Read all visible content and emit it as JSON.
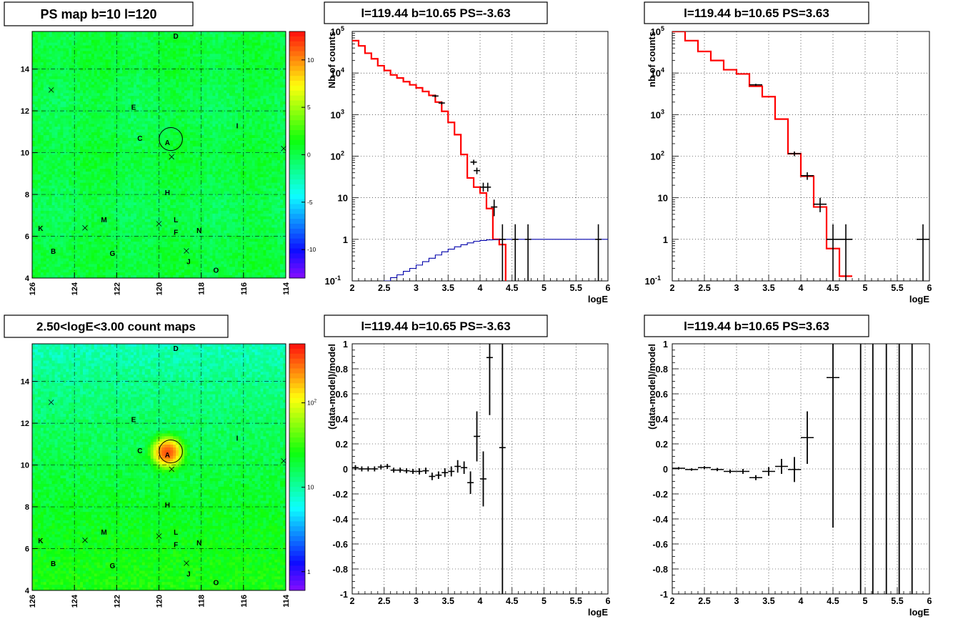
{
  "panels": [
    {
      "kind": "map",
      "title": "PS map b=10 l=120",
      "color_scale": "signed",
      "z_range": [
        -13,
        13
      ],
      "z_ticks": [
        {
          "v": 10,
          "t": "10"
        },
        {
          "v": 5,
          "t": "5"
        },
        {
          "v": 0,
          "t": "0"
        },
        {
          "v": -5,
          "t": "-5"
        },
        {
          "v": -10,
          "t": "-10"
        }
      ],
      "background_level": 0.4
    },
    {
      "kind": "hist",
      "title": "l=119.44 b=10.65 PS=-3.63",
      "ylabel": "Nb of counts"
    },
    {
      "kind": "hist",
      "title": "l=119.44 b=10.65 PS=3.63",
      "ylabel": "nb of counts"
    },
    {
      "kind": "map",
      "title": "2.50<logE<3.00 count maps",
      "color_scale": "log",
      "z_range": [
        0.6,
        500
      ],
      "z_ticks": [
        {
          "v": 100,
          "t": "10",
          "sup": "2"
        },
        {
          "v": 10,
          "t": "10",
          "sup": ""
        },
        {
          "v": 1,
          "t": "1",
          "sup": ""
        }
      ],
      "background_level": 22
    },
    {
      "kind": "resid",
      "title": "l=119.44 b=10.65 PS=-3.63",
      "ylabel": "(data-model)/model"
    },
    {
      "kind": "resid",
      "title": "l=119.44 b=10.65 PS=3.63",
      "ylabel": "(data-model)/model"
    }
  ],
  "map_axes": {
    "x_ticks": [
      "126",
      "124",
      "122",
      "120",
      "118",
      "116",
      "114"
    ],
    "y_ticks": [
      "4",
      "6",
      "8",
      "10",
      "12",
      "14"
    ],
    "xlim": [
      126,
      114
    ],
    "ylim": [
      4,
      15.8
    ],
    "sources": [
      {
        "label": "A",
        "l": 119.6,
        "b": 10.5
      },
      {
        "label": "C",
        "l": 120.9,
        "b": 10.7
      },
      {
        "label": "D",
        "l": 119.2,
        "b": 15.6
      },
      {
        "label": "E",
        "l": 121.2,
        "b": 12.2
      },
      {
        "label": "I",
        "l": 116.3,
        "b": 11.3
      },
      {
        "label": "H",
        "l": 119.6,
        "b": 8.1
      },
      {
        "label": "K",
        "l": 125.6,
        "b": 6.4
      },
      {
        "label": "M",
        "l": 122.6,
        "b": 6.8
      },
      {
        "label": "L",
        "l": 119.2,
        "b": 6.8
      },
      {
        "label": "F",
        "l": 119.2,
        "b": 6.2
      },
      {
        "label": "N",
        "l": 118.1,
        "b": 6.3
      },
      {
        "label": "B",
        "l": 125.0,
        "b": 5.3
      },
      {
        "label": "G",
        "l": 122.2,
        "b": 5.2
      },
      {
        "label": "J",
        "l": 118.6,
        "b": 4.8
      },
      {
        "label": "O",
        "l": 117.3,
        "b": 4.4
      }
    ],
    "crosses": [
      {
        "l": 125.1,
        "b": 13.0
      },
      {
        "l": 119.4,
        "b": 9.8
      },
      {
        "l": 114.1,
        "b": 10.2
      },
      {
        "l": 123.5,
        "b": 6.4
      },
      {
        "l": 120.0,
        "b": 6.6
      },
      {
        "l": 118.7,
        "b": 5.3
      }
    ],
    "circle": {
      "l": 119.44,
      "b": 10.65,
      "r": 0.55
    }
  },
  "hist_axes": {
    "xlabel": "logE",
    "xlim": [
      2,
      6
    ],
    "x_ticks": [
      "2",
      "2.5",
      "3",
      "3.5",
      "4",
      "4.5",
      "5",
      "5.5",
      "6"
    ],
    "ylim": [
      0.1,
      100000
    ],
    "y_ticks": [
      {
        "v": 100000,
        "base": "10",
        "sup": "5"
      },
      {
        "v": 10000,
        "base": "10",
        "sup": "4"
      },
      {
        "v": 1000,
        "base": "10",
        "sup": "3"
      },
      {
        "v": 100,
        "base": "10",
        "sup": "2"
      },
      {
        "v": 10,
        "base": "10",
        "sup": ""
      },
      {
        "v": 1,
        "base": "1",
        "sup": ""
      },
      {
        "v": 0.1,
        "base": "10",
        "sup": "-1"
      }
    ]
  },
  "resid_axes": {
    "xlabel": "logE",
    "xlim": [
      2,
      6
    ],
    "x_ticks": [
      "2",
      "2.5",
      "3",
      "3.5",
      "4",
      "4.5",
      "5",
      "5.5",
      "6"
    ],
    "ylim": [
      -1,
      1
    ],
    "y_ticks": [
      "1",
      "0.8",
      "0.6",
      "0.4",
      "0.2",
      "0",
      "-0.2",
      "-0.4",
      "-0.6",
      "-0.8",
      "-1"
    ]
  },
  "colors": {
    "model": "#ff0000",
    "source_model": "#0000aa",
    "data": "#000000",
    "grid": "#000000"
  },
  "chart_data": [
    {
      "type": "heatmap",
      "title": "PS map b=10 l=120",
      "xlim": [
        126,
        114
      ],
      "ylim": [
        4,
        15.8
      ],
      "zlim": [
        -13,
        13
      ],
      "note_values": "mostly near 0 to 1 across the map"
    },
    {
      "type": "line",
      "title": "l=119.44 b=10.65 PS=-3.63",
      "xlabel": "logE",
      "ylabel": "Nb of counts",
      "yscale": "log",
      "xlim": [
        2,
        6
      ],
      "ylim": [
        0.1,
        100000
      ],
      "series": [
        {
          "style": "step-red",
          "edges": [
            2.0,
            2.1,
            2.2,
            2.3,
            2.4,
            2.5,
            2.6,
            2.7,
            2.8,
            2.9,
            3.0,
            3.1,
            3.2,
            3.3,
            3.4,
            3.5,
            3.6,
            3.7,
            3.8,
            3.9,
            4.0,
            4.1,
            4.2,
            4.3,
            4.4,
            4.5,
            4.6
          ],
          "values": [
            60000,
            45000,
            30000,
            22000,
            15000,
            11500,
            9000,
            7600,
            6200,
            5200,
            4400,
            3600,
            2900,
            2000,
            1200,
            650,
            330,
            110,
            30,
            18,
            13,
            5.5,
            1,
            0.75,
            0.08,
            0.08
          ]
        },
        {
          "style": "step-blue",
          "edges": [
            2.0,
            2.1,
            2.2,
            2.3,
            2.4,
            2.5,
            2.6,
            2.7,
            2.8,
            2.9,
            3.0,
            3.1,
            3.2,
            3.3,
            3.4,
            3.5,
            3.6,
            3.7,
            3.8,
            3.9,
            4.0,
            4.1,
            4.2,
            4.3,
            4.4,
            4.5,
            4.6,
            4.7,
            4.8,
            4.9,
            5.0,
            5.1,
            5.2,
            5.3,
            5.4,
            5.5,
            5.6,
            5.7,
            5.8,
            5.9,
            6.0
          ],
          "values": [
            0.08,
            0.08,
            0.08,
            0.08,
            0.08,
            0.1,
            0.12,
            0.14,
            0.17,
            0.2,
            0.24,
            0.29,
            0.35,
            0.42,
            0.5,
            0.58,
            0.66,
            0.74,
            0.82,
            0.9,
            0.94,
            0.97,
            0.98,
            0.99,
            1,
            1,
            1,
            1,
            1,
            1,
            1,
            1,
            1,
            1,
            1,
            1,
            1,
            1,
            1,
            1
          ]
        },
        {
          "style": "errorbars",
          "points": [
            {
              "x": 3.3,
              "xe": 0.05,
              "y": 2800,
              "ylo": 2600,
              "yhi": 3000
            },
            {
              "x": 3.4,
              "xe": 0.05,
              "y": 1900,
              "ylo": 1750,
              "yhi": 2050
            },
            {
              "x": 3.9,
              "xe": 0.05,
              "y": 72,
              "ylo": 62,
              "yhi": 82
            },
            {
              "x": 3.95,
              "xe": 0.05,
              "y": 45,
              "ylo": 37,
              "yhi": 53
            },
            {
              "x": 4.05,
              "xe": 0.05,
              "y": 18,
              "ylo": 14,
              "yhi": 23
            },
            {
              "x": 4.12,
              "xe": 0.05,
              "y": 18,
              "ylo": 14,
              "yhi": 23
            },
            {
              "x": 4.22,
              "xe": 0.05,
              "y": 6,
              "ylo": 3.6,
              "yhi": 9
            },
            {
              "x": 4.35,
              "xe": 0.05,
              "y": 1,
              "ylo": 0.08,
              "yhi": 2.3
            },
            {
              "x": 4.55,
              "xe": 0.05,
              "y": 1,
              "ylo": 0.08,
              "yhi": 2.3
            },
            {
              "x": 4.75,
              "xe": 0.05,
              "y": 1,
              "ylo": 0.08,
              "yhi": 2.3
            },
            {
              "x": 5.85,
              "xe": 0.05,
              "y": 1,
              "ylo": 0.08,
              "yhi": 2.3
            }
          ]
        }
      ]
    },
    {
      "type": "line",
      "title": "l=119.44 b=10.65 PS=3.63",
      "xlabel": "logE",
      "ylabel": "nb of counts",
      "yscale": "log",
      "xlim": [
        2,
        6
      ],
      "ylim": [
        0.1,
        100000
      ],
      "series": [
        {
          "style": "step-red",
          "edges": [
            2.0,
            2.2,
            2.4,
            2.6,
            2.8,
            3.0,
            3.2,
            3.4,
            3.6,
            3.8,
            4.0,
            4.2,
            4.4,
            4.6,
            4.8
          ],
          "values": [
            100000,
            60000,
            33000,
            20000,
            12000,
            9500,
            4800,
            2700,
            780,
            115,
            33,
            6,
            0.6,
            0.13
          ]
        },
        {
          "style": "errorbars",
          "points": [
            {
              "x": 3.3,
              "xe": 0.1,
              "y": 5200,
              "ylo": 4900,
              "yhi": 5500
            },
            {
              "x": 3.9,
              "xe": 0.1,
              "y": 115,
              "ylo": 100,
              "yhi": 130
            },
            {
              "x": 4.1,
              "xe": 0.1,
              "y": 34,
              "ylo": 27,
              "yhi": 41
            },
            {
              "x": 4.3,
              "xe": 0.1,
              "y": 7,
              "ylo": 4.5,
              "yhi": 10
            },
            {
              "x": 4.5,
              "xe": 0.1,
              "y": 1,
              "ylo": 0.08,
              "yhi": 2.3
            },
            {
              "x": 4.7,
              "xe": 0.1,
              "y": 1,
              "ylo": 0.08,
              "yhi": 2.3
            },
            {
              "x": 5.9,
              "xe": 0.1,
              "y": 1,
              "ylo": 0.08,
              "yhi": 2.3
            }
          ]
        }
      ]
    },
    {
      "type": "heatmap",
      "title": "2.50<logE<3.00 count maps",
      "xlim": [
        126,
        114
      ],
      "ylim": [
        4,
        15.8
      ],
      "zlim": [
        0.6,
        500
      ],
      "zscale": "log",
      "note_values": "background ~15-40 counts, peak >300 at l=119.6 b=10.6"
    },
    {
      "type": "scatter",
      "title": "l=119.44 b=10.65 PS=-3.63",
      "xlabel": "logE",
      "ylabel": "(data-model)/model",
      "xlim": [
        2,
        6
      ],
      "ylim": [
        -1,
        1
      ],
      "points": [
        {
          "x": 2.05,
          "xe": 0.05,
          "y": 0.01,
          "e": 0.02
        },
        {
          "x": 2.15,
          "xe": 0.05,
          "y": 0.0,
          "e": 0.02
        },
        {
          "x": 2.25,
          "xe": 0.05,
          "y": 0.0,
          "e": 0.02
        },
        {
          "x": 2.35,
          "xe": 0.05,
          "y": 0.0,
          "e": 0.02
        },
        {
          "x": 2.45,
          "xe": 0.05,
          "y": 0.015,
          "e": 0.02
        },
        {
          "x": 2.55,
          "xe": 0.05,
          "y": 0.02,
          "e": 0.02
        },
        {
          "x": 2.65,
          "xe": 0.05,
          "y": -0.01,
          "e": 0.02
        },
        {
          "x": 2.75,
          "xe": 0.05,
          "y": -0.01,
          "e": 0.02
        },
        {
          "x": 2.85,
          "xe": 0.05,
          "y": -0.015,
          "e": 0.02
        },
        {
          "x": 2.95,
          "xe": 0.05,
          "y": -0.02,
          "e": 0.02
        },
        {
          "x": 3.05,
          "xe": 0.05,
          "y": -0.02,
          "e": 0.025
        },
        {
          "x": 3.15,
          "xe": 0.05,
          "y": -0.015,
          "e": 0.025
        },
        {
          "x": 3.25,
          "xe": 0.05,
          "y": -0.06,
          "e": 0.03
        },
        {
          "x": 3.35,
          "xe": 0.05,
          "y": -0.05,
          "e": 0.03
        },
        {
          "x": 3.45,
          "xe": 0.05,
          "y": -0.03,
          "e": 0.035
        },
        {
          "x": 3.55,
          "xe": 0.05,
          "y": -0.02,
          "e": 0.04
        },
        {
          "x": 3.65,
          "xe": 0.05,
          "y": 0.02,
          "e": 0.05
        },
        {
          "x": 3.75,
          "xe": 0.05,
          "y": 0.01,
          "e": 0.05
        },
        {
          "x": 3.85,
          "xe": 0.05,
          "y": -0.11,
          "e": 0.09
        },
        {
          "x": 3.95,
          "xe": 0.05,
          "y": 0.26,
          "e": 0.2
        },
        {
          "x": 4.05,
          "xe": 0.05,
          "y": -0.08,
          "e": 0.22
        },
        {
          "x": 4.15,
          "xe": 0.05,
          "y": 0.89,
          "e": 0.46
        },
        {
          "x": 4.35,
          "xe": 0.05,
          "y": 0.17,
          "e": 1.2
        }
      ]
    },
    {
      "type": "scatter",
      "title": "l=119.44 b=10.65 PS=3.63",
      "xlabel": "logE",
      "ylabel": "(data-model)/model",
      "xlim": [
        2,
        6
      ],
      "ylim": [
        -1,
        1
      ],
      "points": [
        {
          "x": 2.1,
          "xe": 0.1,
          "y": 0.005,
          "e": 0.01
        },
        {
          "x": 2.3,
          "xe": 0.1,
          "y": -0.005,
          "e": 0.01
        },
        {
          "x": 2.5,
          "xe": 0.1,
          "y": 0.01,
          "e": 0.012
        },
        {
          "x": 2.7,
          "xe": 0.1,
          "y": -0.005,
          "e": 0.013
        },
        {
          "x": 2.9,
          "xe": 0.1,
          "y": -0.02,
          "e": 0.015
        },
        {
          "x": 3.1,
          "xe": 0.1,
          "y": -0.02,
          "e": 0.02
        },
        {
          "x": 3.3,
          "xe": 0.1,
          "y": -0.07,
          "e": 0.02
        },
        {
          "x": 3.5,
          "xe": 0.1,
          "y": -0.02,
          "e": 0.035
        },
        {
          "x": 3.7,
          "xe": 0.1,
          "y": 0.02,
          "e": 0.06
        },
        {
          "x": 3.9,
          "xe": 0.1,
          "y": -0.005,
          "e": 0.1
        },
        {
          "x": 4.1,
          "xe": 0.1,
          "y": 0.25,
          "e": 0.21
        },
        {
          "x": 4.5,
          "xe": 0.1,
          "y": 0.73,
          "e": 1.2
        },
        {
          "x": 4.93,
          "xe": 0,
          "y": 0.1,
          "e": 1.2
        },
        {
          "x": 5.12,
          "xe": 0,
          "y": 0.1,
          "e": 1.2
        },
        {
          "x": 5.33,
          "xe": 0,
          "y": 0.1,
          "e": 1.2
        },
        {
          "x": 5.53,
          "xe": 0,
          "y": 0.1,
          "e": 1.2
        },
        {
          "x": 5.73,
          "xe": 0,
          "y": 0.1,
          "e": 1.2
        }
      ]
    }
  ]
}
